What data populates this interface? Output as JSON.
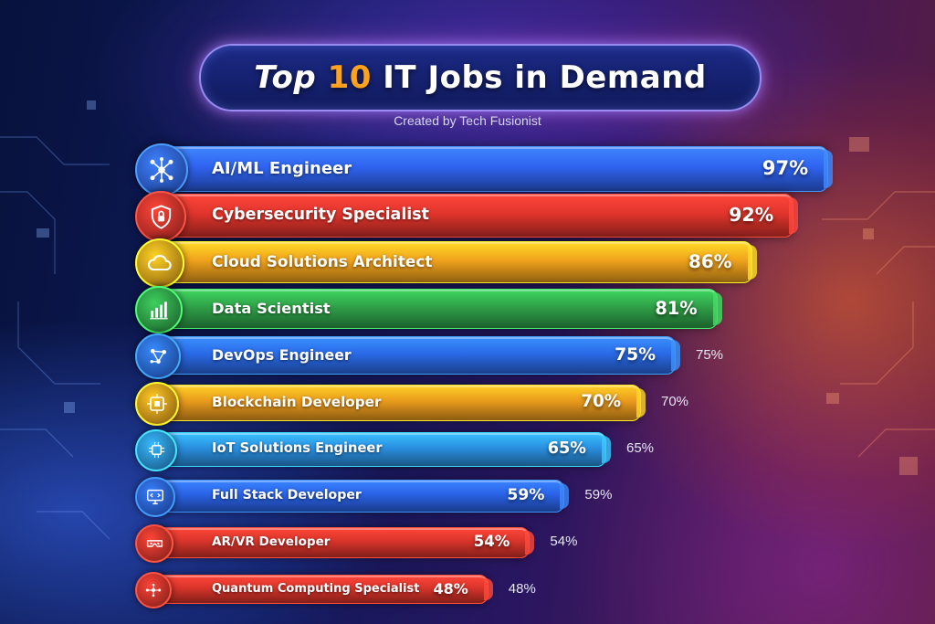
{
  "header": {
    "title_prefix": "Top",
    "title_number": "10",
    "title_suffix": "IT Jobs in Demand",
    "subtitle": "Created by Tech Fusionist"
  },
  "chart_data": {
    "type": "bar",
    "orientation": "horizontal",
    "title": "Top 10 IT Jobs in Demand",
    "subtitle": "Created by Tech Fusionist",
    "xlim": [
      0,
      100
    ],
    "grid": false,
    "categories": [
      "AI/ML Engineer",
      "Cybersecurity Specialist",
      "Cloud Solutions Architect",
      "Data Scientist",
      "DevOps Engineer",
      "Blockchain Developer",
      "IoT Solutions Engineer",
      "Full Stack Developer",
      "AR/VR Developer",
      "Quantum Computing Specialist"
    ],
    "values": [
      97,
      92,
      86,
      81,
      75,
      70,
      65,
      59,
      54,
      48
    ],
    "value_labels": [
      "97%",
      "92%",
      "86%",
      "81%",
      "75%",
      "70%",
      "65%",
      "59%",
      "54%",
      "48%"
    ],
    "outside_labels": [
      "",
      "",
      "",
      "",
      "75%",
      "70%",
      "65%",
      "59%",
      "54%",
      "48%"
    ],
    "bar_colors": [
      "#2f63f0",
      "#e0342c",
      "#f0a21c",
      "#2fa048",
      "#2a6ae8",
      "#e99a1c",
      "#2a8fe0",
      "#2a62e6",
      "#d8342a",
      "#d9342a"
    ],
    "icons": [
      "neural-network-icon",
      "shield-lock-icon",
      "cloud-icon",
      "bar-chart-icon",
      "network-nodes-icon",
      "blockchain-block-icon",
      "circuit-chip-icon",
      "monitor-code-icon",
      "vr-headset-icon",
      "quantum-molecule-icon"
    ]
  }
}
